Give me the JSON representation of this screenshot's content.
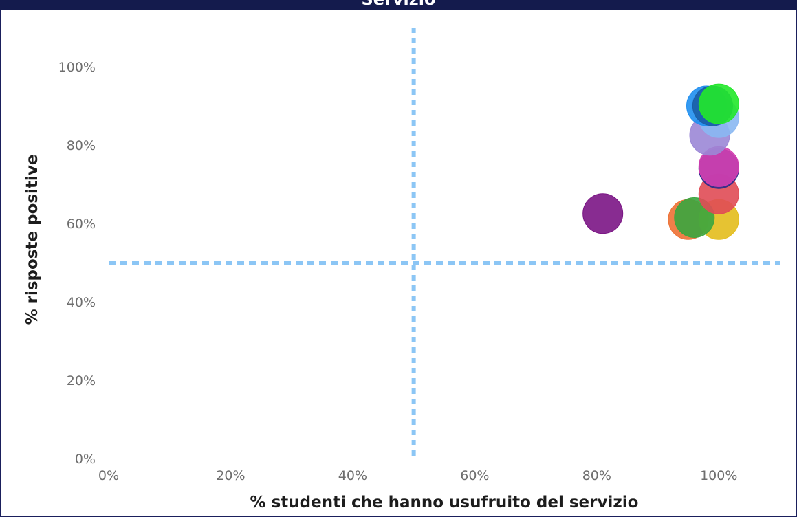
{
  "chart_data": {
    "type": "scatter",
    "title": "Servizio",
    "xlabel": "% studenti che hanno usufruito del servizio",
    "ylabel": "% risposte positive",
    "xlim": [
      0,
      1.1
    ],
    "ylim": [
      0,
      1.1
    ],
    "x_ticks": [
      "0%",
      "20%",
      "40%",
      "60%",
      "80%",
      "100%"
    ],
    "y_ticks": [
      "0%",
      "20%",
      "40%",
      "60%",
      "80%",
      "100%"
    ],
    "reference_lines": {
      "x": 0.5,
      "y": 0.5,
      "color": "#8cc6f5",
      "style": "dashed"
    },
    "points": [
      {
        "x": 0.81,
        "y": 0.625,
        "color": "#7b1585"
      },
      {
        "x": 0.95,
        "y": 0.61,
        "color": "#ed7135"
      },
      {
        "x": 1.0,
        "y": 0.61,
        "color": "#e3bc1c"
      },
      {
        "x": 0.96,
        "y": 0.615,
        "color": "#3aa63f"
      },
      {
        "x": 1.0,
        "y": 0.675,
        "color": "#e04b55"
      },
      {
        "x": 1.0,
        "y": 0.74,
        "color": "#2a2c8c"
      },
      {
        "x": 1.0,
        "y": 0.745,
        "color": "#d43fb0"
      },
      {
        "x": 0.985,
        "y": 0.825,
        "color": "#9b87d6"
      },
      {
        "x": 1.0,
        "y": 0.87,
        "color": "#8ab8f2"
      },
      {
        "x": 0.98,
        "y": 0.9,
        "color": "#1f8ff0"
      },
      {
        "x": 0.99,
        "y": 0.9,
        "color": "#1a5ea6"
      },
      {
        "x": 1.0,
        "y": 0.905,
        "color": "#22e82a"
      }
    ]
  }
}
